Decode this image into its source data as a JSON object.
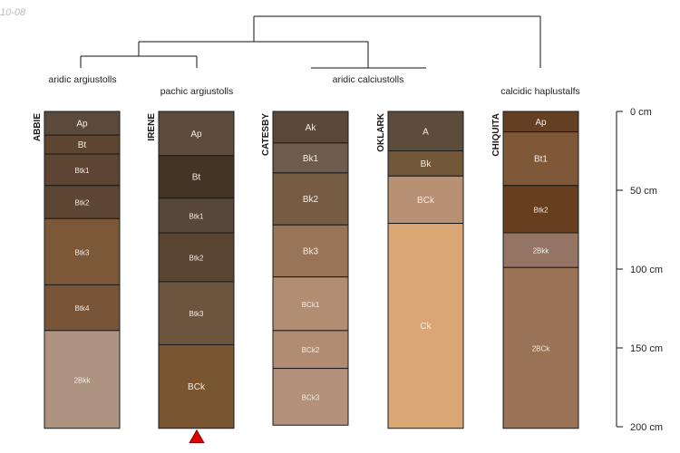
{
  "corner_label": "10-08",
  "scale": {
    "max_depth_cm": 200,
    "ticks": [
      {
        "depth": 0,
        "label": "0 cm"
      },
      {
        "depth": 50,
        "label": "50 cm"
      },
      {
        "depth": 100,
        "label": "100 cm"
      },
      {
        "depth": 150,
        "label": "150 cm"
      },
      {
        "depth": 200,
        "label": "200 cm"
      }
    ]
  },
  "classification_labels": [
    {
      "id": "aridic-argiustolls",
      "text": "aridic argiustolls"
    },
    {
      "id": "pachic-argiustolls",
      "text": "pachic argiustolls"
    },
    {
      "id": "aridic-calciustolls",
      "text": "aridic calciustolls"
    },
    {
      "id": "calcidic-haplustalfs",
      "text": "calcidic haplustalfs"
    }
  ],
  "profiles": [
    {
      "name": "ABBIE",
      "marker": false,
      "horizons": [
        {
          "name": "Ap",
          "top": 0,
          "bottom": 15,
          "color": "#5b4a3b"
        },
        {
          "name": "Bt",
          "top": 15,
          "bottom": 27,
          "color": "#5e4530"
        },
        {
          "name": "Btk1",
          "top": 27,
          "bottom": 47,
          "color": "#5e4433"
        },
        {
          "name": "Btk2",
          "top": 47,
          "bottom": 68,
          "color": "#5e4634"
        },
        {
          "name": "Btk3",
          "top": 68,
          "bottom": 110,
          "color": "#7d5838"
        },
        {
          "name": "Btk4",
          "top": 110,
          "bottom": 139,
          "color": "#7a5437"
        },
        {
          "name": "2Bkk",
          "top": 139,
          "bottom": 201,
          "color": "#ad9380"
        }
      ]
    },
    {
      "name": "IRENE",
      "marker": true,
      "horizons": [
        {
          "name": "Ap",
          "top": 0,
          "bottom": 28,
          "color": "#5d4c3c"
        },
        {
          "name": "Bt",
          "top": 28,
          "bottom": 55,
          "color": "#433426"
        },
        {
          "name": "Btk1",
          "top": 55,
          "bottom": 77,
          "color": "#57463a"
        },
        {
          "name": "Btk2",
          "top": 77,
          "bottom": 108,
          "color": "#5a4530"
        },
        {
          "name": "Btk3",
          "top": 108,
          "bottom": 148,
          "color": "#6b553e"
        },
        {
          "name": "BCk",
          "top": 148,
          "bottom": 201,
          "color": "#795532"
        }
      ]
    },
    {
      "name": "CATESBY",
      "marker": false,
      "horizons": [
        {
          "name": "Ak",
          "top": 0,
          "bottom": 20,
          "color": "#5a493b"
        },
        {
          "name": "Bk1",
          "top": 20,
          "bottom": 39,
          "color": "#6d5c4e"
        },
        {
          "name": "Bk2",
          "top": 39,
          "bottom": 72,
          "color": "#765c43"
        },
        {
          "name": "Bk3",
          "top": 72,
          "bottom": 105,
          "color": "#9a7456"
        },
        {
          "name": "BCk1",
          "top": 105,
          "bottom": 139,
          "color": "#b38d72"
        },
        {
          "name": "BCk2",
          "top": 139,
          "bottom": 163,
          "color": "#b18c72"
        },
        {
          "name": "BCk3",
          "top": 163,
          "bottom": 199,
          "color": "#b3917a"
        }
      ]
    },
    {
      "name": "OKLARK",
      "marker": false,
      "horizons": [
        {
          "name": "A",
          "top": 0,
          "bottom": 25,
          "color": "#5d4b3b"
        },
        {
          "name": "Bk",
          "top": 25,
          "bottom": 41,
          "color": "#725739"
        },
        {
          "name": "BCk",
          "top": 41,
          "bottom": 71,
          "color": "#b89073"
        },
        {
          "name": "Ck",
          "top": 71,
          "bottom": 201,
          "color": "#daa674"
        }
      ]
    },
    {
      "name": "CHIQUITA",
      "marker": false,
      "horizons": [
        {
          "name": "Ap",
          "top": 0,
          "bottom": 13,
          "color": "#653f24"
        },
        {
          "name": "Bt1",
          "top": 13,
          "bottom": 47,
          "color": "#7f5838"
        },
        {
          "name": "Btk2",
          "top": 47,
          "bottom": 77,
          "color": "#683f1e"
        },
        {
          "name": "2Bkk",
          "top": 77,
          "bottom": 99,
          "color": "#947564"
        },
        {
          "name": "2BCk",
          "top": 99,
          "bottom": 201,
          "color": "#9a7356"
        }
      ]
    }
  ],
  "colors": {
    "outline": "#1a1a1a",
    "dark_text": "#1a1a1a",
    "light_text": "#f3ece4",
    "marker": "#e00000"
  }
}
